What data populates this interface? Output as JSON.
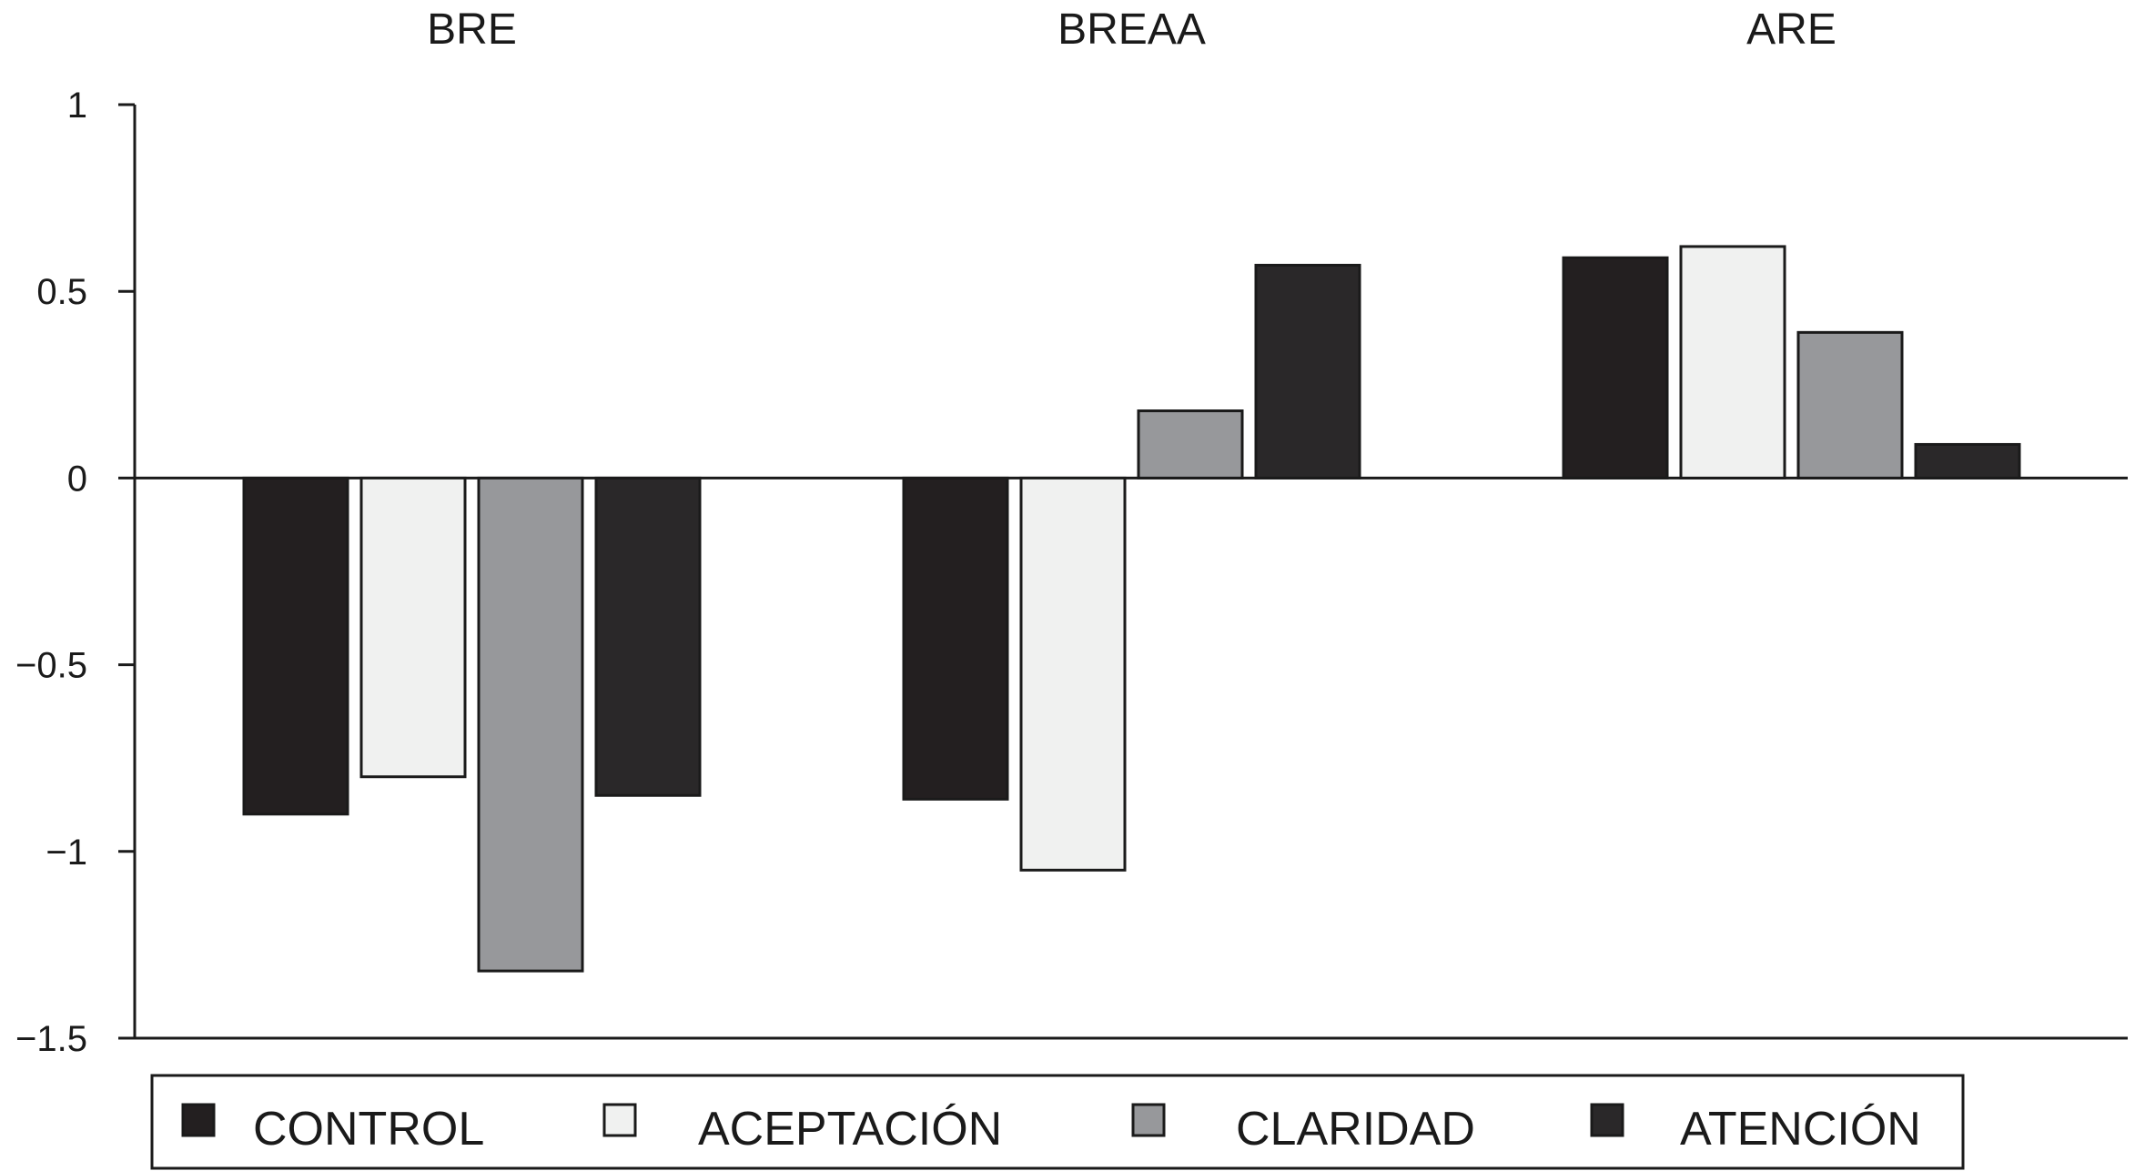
{
  "chart_data": {
    "type": "bar",
    "title": "",
    "xlabel": "",
    "ylabel": "",
    "categories": [
      "BRE",
      "BREAA",
      "ARE"
    ],
    "series": [
      {
        "name": "CONTROL",
        "values": [
          -0.9,
          -0.86,
          0.59
        ],
        "color": "#231f20"
      },
      {
        "name": "ACEPTACIÓN",
        "values": [
          -0.8,
          -1.05,
          0.62
        ],
        "color": "#f0f1f0"
      },
      {
        "name": "CLARIDAD",
        "values": [
          -1.32,
          0.18,
          0.39
        ],
        "color": "#97989b"
      },
      {
        "name": "ATENCIÓN",
        "values": [
          -0.85,
          0.57,
          0.09
        ],
        "color": "#2a2829"
      }
    ],
    "ylim": [
      -1.5,
      1
    ],
    "yticks": [
      1,
      0.5,
      0,
      -0.5,
      -1,
      -1.5
    ],
    "ytick_labels": [
      "1",
      "0.5",
      "0",
      "−0.5",
      "−1",
      "−1.5"
    ],
    "category_label_position": "top",
    "legend_position": "bottom",
    "grid": false
  }
}
